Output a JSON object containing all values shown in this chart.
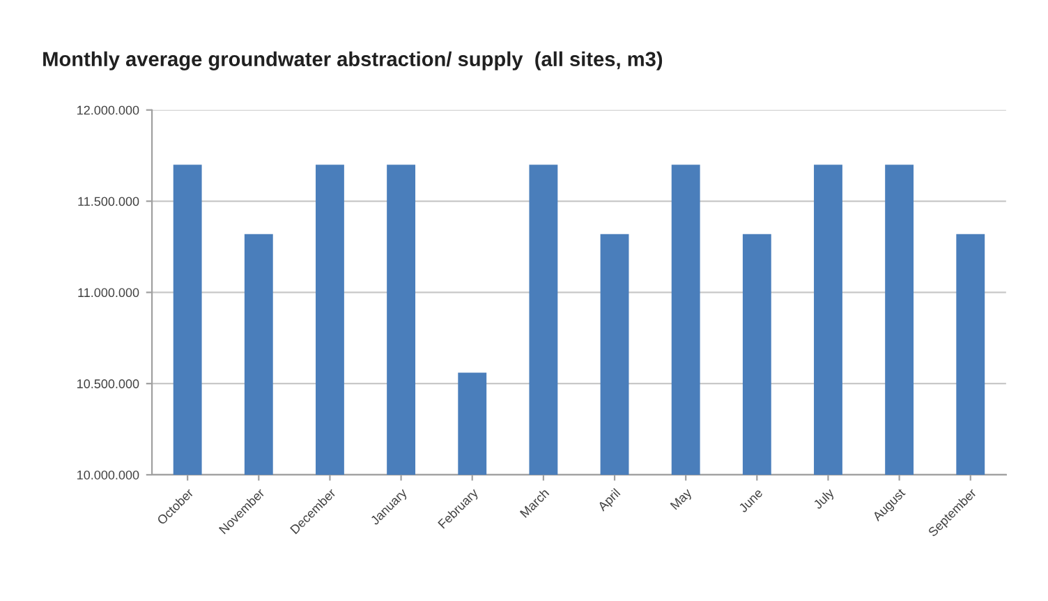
{
  "chart_data": {
    "type": "bar",
    "title": "Monthly average groundwater abstraction/ supply  (all sites, m3)",
    "categories": [
      "October",
      "November",
      "December",
      "January",
      "February",
      "March",
      "April",
      "May",
      "June",
      "July",
      "August",
      "September"
    ],
    "values": [
      11700000,
      11320000,
      11700000,
      11700000,
      10560000,
      11700000,
      11320000,
      11700000,
      11320000,
      11700000,
      11700000,
      11320000
    ],
    "color": "#4a7ebb",
    "ylim": [
      10000000,
      12000000
    ],
    "yticks": [
      {
        "value": 10000000,
        "label": "10.000.000"
      },
      {
        "value": 10500000,
        "label": "10.500.000"
      },
      {
        "value": 11000000,
        "label": "11.000.000"
      },
      {
        "value": 11500000,
        "label": "11.500.000"
      },
      {
        "value": 12000000,
        "label": "12.000.000"
      }
    ],
    "grid": "y",
    "legend": false
  }
}
